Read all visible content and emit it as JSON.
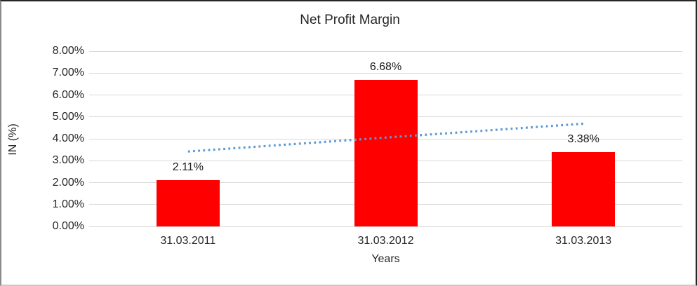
{
  "chart_data": {
    "type": "bar",
    "title": "Net Profit Margin",
    "xlabel": "Years",
    "ylabel": "IN (%)",
    "categories": [
      "31.03.2011",
      "31.03.2012",
      "31.03.2013"
    ],
    "values": [
      2.11,
      6.68,
      3.38
    ],
    "data_labels": [
      "2.11%",
      "6.68%",
      "3.38%"
    ],
    "ylim": [
      0,
      8
    ],
    "ytick_labels": [
      "0.00%",
      "1.00%",
      "2.00%",
      "3.00%",
      "4.00%",
      "5.00%",
      "6.00%",
      "7.00%",
      "8.00%"
    ],
    "grid": true,
    "legend": "none",
    "trendline": {
      "type": "linear",
      "style": "dotted",
      "start_value": 3.42,
      "end_value": 4.69
    },
    "colors": {
      "bar": "#FF0000",
      "trendline": "#5B9BD5",
      "gridline": "#D9D9D9",
      "text": "#262626",
      "background": "#FFFFFF"
    }
  }
}
